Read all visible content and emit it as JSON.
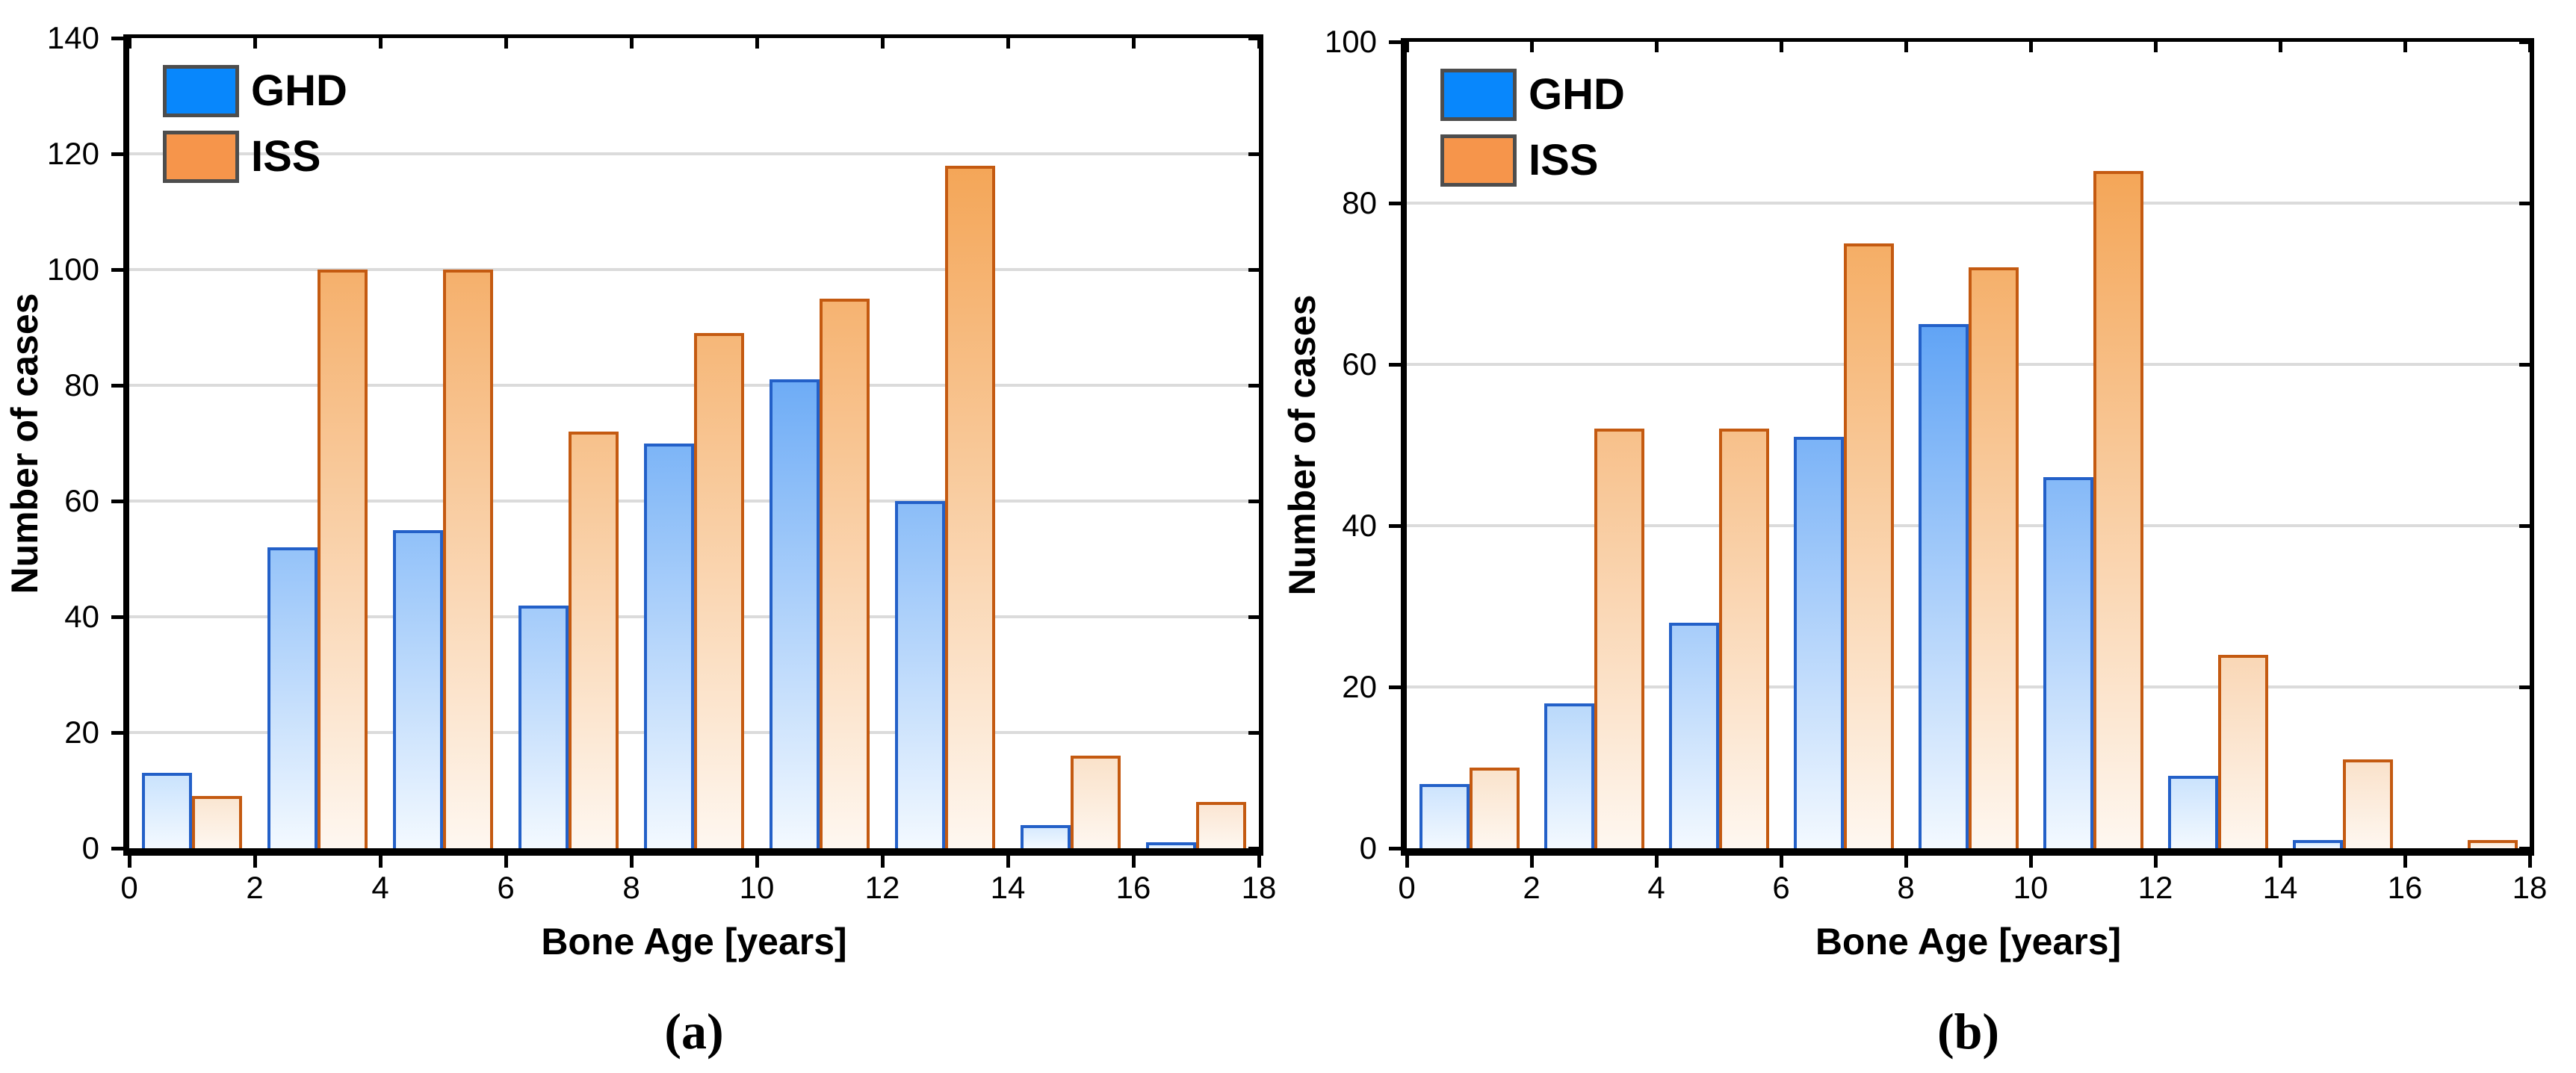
{
  "figure": {
    "background": "#FFFFFF",
    "xlabel": "Bone Age [years]",
    "ylabel": "Number of cases",
    "legend": {
      "entries": [
        "GHD",
        "ISS"
      ]
    }
  },
  "colors": {
    "background": "#FFFFFF",
    "spine": "#000000",
    "tick": "#000000",
    "gridline": "#DBDBDB",
    "text": "#000000",
    "legend_border": "#4D4D4D",
    "ghd_legend": "#0887FC",
    "iss_legend": "#F6954B",
    "ghd_border": "#2360C8",
    "iss_border": "#C45A11"
  },
  "chart_data": [
    {
      "panel": "a",
      "type": "bar",
      "subtype": "grouped-histogram",
      "title": "",
      "caption": "(a)",
      "xlabel": "Bone Age [years]",
      "ylabel": "Number of cases",
      "grid": "horizontal",
      "legend_position": "top-left",
      "categories": [
        "0-2",
        "2-4",
        "4-6",
        "6-8",
        "8-10",
        "10-12",
        "12-14",
        "14-16",
        "16-18"
      ],
      "bins": [
        [
          0,
          2
        ],
        [
          2,
          4
        ],
        [
          4,
          6
        ],
        [
          6,
          8
        ],
        [
          8,
          10
        ],
        [
          10,
          12
        ],
        [
          12,
          14
        ],
        [
          14,
          16
        ],
        [
          16,
          18
        ]
      ],
      "xlim": [
        0,
        18
      ],
      "xticks": [
        0,
        2,
        4,
        6,
        8,
        10,
        12,
        14,
        16,
        18
      ],
      "ylim": [
        0,
        140
      ],
      "yticks": [
        0,
        20,
        40,
        60,
        80,
        100,
        120,
        140
      ],
      "series": [
        {
          "name": "GHD",
          "values": [
            13,
            52,
            55,
            42,
            70,
            81,
            60,
            4,
            1
          ],
          "color_legend": "#0887FC",
          "color_border": "#2360C8",
          "color_top_strong": "#1E7CF0",
          "color_top_pale": "#DCEDFE",
          "color_bottom": "#F3F9FF"
        },
        {
          "name": "ISS",
          "values": [
            9,
            100,
            100,
            72,
            89,
            95,
            118,
            16,
            8
          ],
          "color_legend": "#F6954B",
          "color_border": "#C45A11",
          "color_top_strong": "#F3993F",
          "color_top_pale": "#FBEBDC",
          "color_bottom": "#FEF7F0"
        }
      ]
    },
    {
      "panel": "b",
      "type": "bar",
      "subtype": "grouped-histogram",
      "title": "",
      "caption": "(b)",
      "xlabel": "Bone Age [years]",
      "ylabel": "Number of cases",
      "grid": "horizontal",
      "legend_position": "top-left",
      "categories": [
        "0-2",
        "2-4",
        "4-6",
        "6-8",
        "8-10",
        "10-12",
        "12-14",
        "14-16",
        "16-18"
      ],
      "bins": [
        [
          0,
          2
        ],
        [
          2,
          4
        ],
        [
          4,
          6
        ],
        [
          6,
          8
        ],
        [
          8,
          10
        ],
        [
          10,
          12
        ],
        [
          12,
          14
        ],
        [
          14,
          16
        ],
        [
          16,
          18
        ]
      ],
      "xlim": [
        0,
        18
      ],
      "xticks": [
        0,
        2,
        4,
        6,
        8,
        10,
        12,
        14,
        16,
        18
      ],
      "ylim": [
        0,
        100
      ],
      "yticks": [
        0,
        20,
        40,
        60,
        80,
        100
      ],
      "series": [
        {
          "name": "GHD",
          "values": [
            8,
            18,
            28,
            51,
            65,
            46,
            9,
            1,
            0
          ],
          "color_legend": "#0887FC",
          "color_border": "#2360C8",
          "color_top_strong": "#1E7CF0",
          "color_top_pale": "#DCEDFE",
          "color_bottom": "#F3F9FF"
        },
        {
          "name": "ISS",
          "values": [
            10,
            52,
            52,
            75,
            72,
            84,
            24,
            11,
            1
          ],
          "color_legend": "#F6954B",
          "color_border": "#C45A11",
          "color_top_strong": "#F3993F",
          "color_top_pale": "#FBEBDC",
          "color_bottom": "#FEF7F0"
        }
      ]
    }
  ]
}
